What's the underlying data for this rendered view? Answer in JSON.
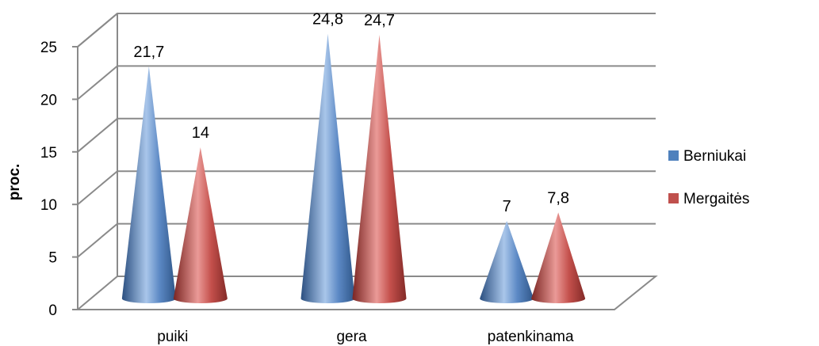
{
  "chart_data": {
    "type": "bar",
    "style": "3d-cone",
    "categories": [
      "puiki",
      "gera",
      "patenkinama"
    ],
    "series": [
      {
        "name": "Berniukai",
        "values": [
          21.7,
          24.8,
          7
        ],
        "labels": [
          "21,7",
          "24,8",
          "7"
        ],
        "color": "#4f81bd"
      },
      {
        "name": "Mergaitės",
        "values": [
          14,
          24.7,
          7.8
        ],
        "labels": [
          "14",
          "24,7",
          "7,8"
        ],
        "color": "#c0504d"
      }
    ],
    "ylabel": "proc.",
    "ylim": [
      0,
      25
    ],
    "yticks": [
      "0",
      "5",
      "10",
      "15",
      "20",
      "25"
    ],
    "grid": true,
    "legend": "right"
  }
}
